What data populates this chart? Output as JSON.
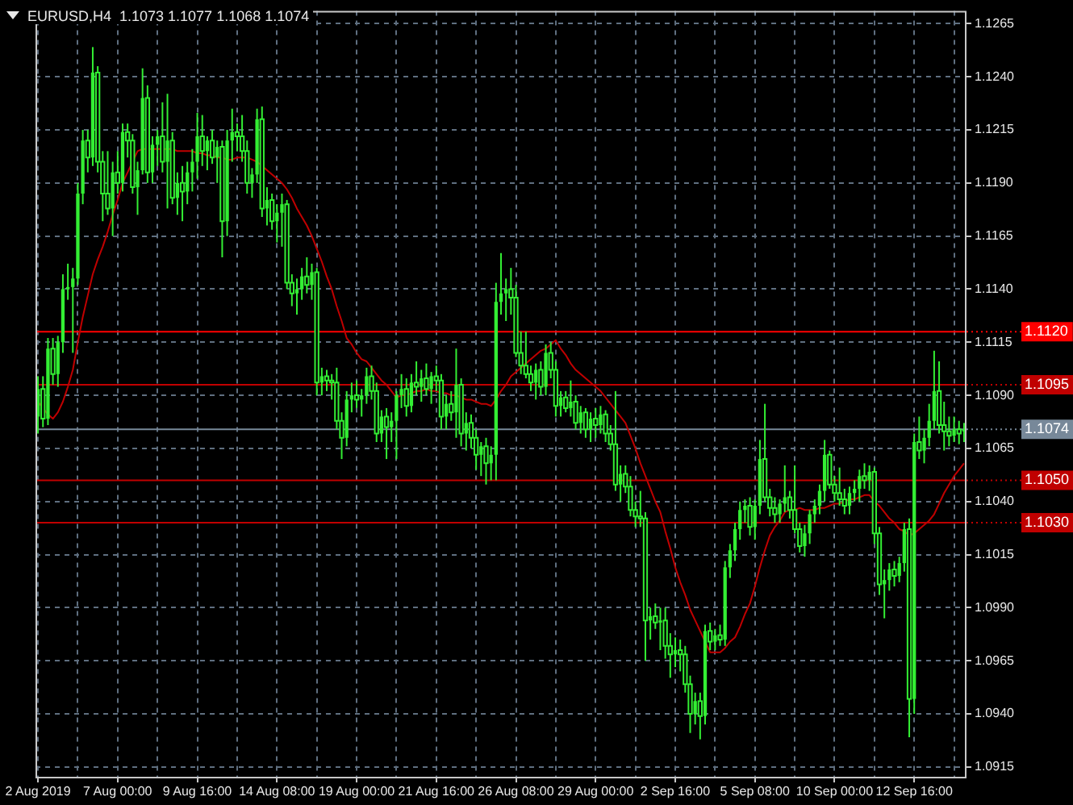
{
  "chart_data": {
    "type": "candlestick",
    "title": "EURUSD,H4  1.1073 1.1077 1.1068 1.1074",
    "color": "#33ee33",
    "categories": [
      "2 Aug 2019",
      null,
      null,
      null,
      null,
      null,
      null,
      null,
      null,
      null,
      null,
      null,
      null,
      null,
      null,
      null,
      "7 Aug 00:00",
      null,
      null,
      null,
      null,
      null,
      null,
      null,
      null,
      null,
      null,
      null,
      null,
      null,
      null,
      null,
      "9 Aug 16:00",
      null,
      null,
      null,
      null,
      null,
      null,
      null,
      null,
      null,
      null,
      null,
      null,
      null,
      null,
      null,
      "14 Aug 08:00",
      null,
      null,
      null,
      null,
      null,
      null,
      null,
      null,
      null,
      null,
      null,
      null,
      null,
      null,
      null,
      "19 Aug 00:00",
      null,
      null,
      null,
      null,
      null,
      null,
      null,
      null,
      null,
      null,
      null,
      null,
      null,
      null,
      null,
      "21 Aug 16:00",
      null,
      null,
      null,
      null,
      null,
      null,
      null,
      null,
      null,
      null,
      null,
      null,
      null,
      null,
      null,
      "26 Aug 08:00",
      null,
      null,
      null,
      null,
      null,
      null,
      null,
      null,
      null,
      null,
      null,
      null,
      null,
      null,
      null,
      "29 Aug 00:00",
      null,
      null,
      null,
      null,
      null,
      null,
      null,
      null,
      null,
      null,
      null,
      null,
      null,
      null,
      null,
      "2 Sep 16:00",
      null,
      null,
      null,
      null,
      null,
      null,
      null,
      null,
      null,
      null,
      null,
      null,
      null,
      null,
      null,
      "5 Sep 08:00",
      null,
      null,
      null,
      null,
      null,
      null,
      null,
      null,
      null,
      null,
      null,
      null,
      null,
      null,
      null,
      "10 Sep 00:00",
      null,
      null,
      null,
      null,
      null,
      null,
      null,
      null,
      null,
      null,
      null,
      null,
      null,
      null,
      null,
      "12 Sep 16:00",
      null,
      null,
      null,
      null,
      null,
      null,
      null,
      null,
      null,
      null
    ],
    "ohlc": [
      [
        1.108,
        1.1099,
        1.1072,
        1.1093
      ],
      [
        1.1093,
        1.1099,
        1.1075,
        1.1079
      ],
      [
        1.1079,
        1.1117,
        1.1076,
        1.1112
      ],
      [
        1.1112,
        1.1117,
        1.1095,
        1.11
      ],
      [
        1.11,
        1.1118,
        1.1094,
        1.1115
      ],
      [
        1.1115,
        1.1147,
        1.111,
        1.114
      ],
      [
        1.114,
        1.1152,
        1.1135,
        1.1141
      ],
      [
        1.1141,
        1.115,
        1.111,
        1.1145
      ],
      [
        1.1145,
        1.119,
        1.1142,
        1.1185
      ],
      [
        1.1185,
        1.1215,
        1.118,
        1.121
      ],
      [
        1.121,
        1.1215,
        1.1195,
        1.1202
      ],
      [
        1.1202,
        1.1254,
        1.1198,
        1.1242
      ],
      [
        1.1242,
        1.1245,
        1.1195,
        1.12
      ],
      [
        1.12,
        1.1205,
        1.1172,
        1.1185
      ],
      [
        1.1185,
        1.1205,
        1.1175,
        1.1178
      ],
      [
        1.1178,
        1.12,
        1.1165,
        1.1195
      ],
      [
        1.1195,
        1.1205,
        1.1185,
        1.119
      ],
      [
        1.119,
        1.1218,
        1.1186,
        1.1214
      ],
      [
        1.1214,
        1.1218,
        1.1202,
        1.121
      ],
      [
        1.121,
        1.1213,
        1.1185,
        1.1188
      ],
      [
        1.1188,
        1.12,
        1.1175,
        1.1196
      ],
      [
        1.1196,
        1.1244,
        1.1194,
        1.123
      ],
      [
        1.123,
        1.1236,
        1.119,
        1.1195
      ],
      [
        1.1195,
        1.1212,
        1.119,
        1.1208
      ],
      [
        1.1208,
        1.1215,
        1.1198,
        1.1212
      ],
      [
        1.1212,
        1.1228,
        1.1195,
        1.12
      ],
      [
        1.12,
        1.1232,
        1.1178,
        1.121
      ],
      [
        1.121,
        1.1214,
        1.118,
        1.1183
      ],
      [
        1.1183,
        1.1195,
        1.1175,
        1.119
      ],
      [
        1.119,
        1.1198,
        1.1172,
        1.1186
      ],
      [
        1.1186,
        1.12,
        1.118,
        1.1195
      ],
      [
        1.1195,
        1.1206,
        1.1186,
        1.12
      ],
      [
        1.12,
        1.1223,
        1.1192,
        1.1212
      ],
      [
        1.1212,
        1.1222,
        1.1198,
        1.1205
      ],
      [
        1.1205,
        1.1212,
        1.1196,
        1.121
      ],
      [
        1.121,
        1.1215,
        1.1199,
        1.1202
      ],
      [
        1.1202,
        1.121,
        1.119,
        1.1207
      ],
      [
        1.1207,
        1.121,
        1.1155,
        1.1172
      ],
      [
        1.1172,
        1.1215,
        1.1165,
        1.121
      ],
      [
        1.121,
        1.1225,
        1.12,
        1.1214
      ],
      [
        1.1214,
        1.1218,
        1.1205,
        1.1212
      ],
      [
        1.1212,
        1.1222,
        1.12,
        1.1205
      ],
      [
        1.1205,
        1.121,
        1.1185,
        1.119
      ],
      [
        1.119,
        1.1197,
        1.1183,
        1.1194
      ],
      [
        1.1194,
        1.1225,
        1.119,
        1.122
      ],
      [
        1.122,
        1.1226,
        1.1174,
        1.1178
      ],
      [
        1.1178,
        1.1188,
        1.117,
        1.1182
      ],
      [
        1.1182,
        1.1185,
        1.1168,
        1.1172
      ],
      [
        1.1172,
        1.118,
        1.1162,
        1.1176
      ],
      [
        1.1176,
        1.1185,
        1.116,
        1.118
      ],
      [
        1.118,
        1.1182,
        1.114,
        1.1143
      ],
      [
        1.1143,
        1.1147,
        1.1132,
        1.1138
      ],
      [
        1.1138,
        1.1145,
        1.1128,
        1.114
      ],
      [
        1.114,
        1.115,
        1.1135,
        1.1146
      ],
      [
        1.1146,
        1.1155,
        1.1138,
        1.1142
      ],
      [
        1.1142,
        1.1152,
        1.1135,
        1.1148
      ],
      [
        1.1148,
        1.115,
        1.109,
        1.1096
      ],
      [
        1.1096,
        1.1103,
        1.109,
        1.1099
      ],
      [
        1.1099,
        1.1102,
        1.1092,
        1.1097
      ],
      [
        1.1097,
        1.11,
        1.1088,
        1.1096
      ],
      [
        1.1096,
        1.1103,
        1.1074,
        1.1078
      ],
      [
        1.1078,
        1.1082,
        1.106,
        1.107
      ],
      [
        1.107,
        1.1092,
        1.1066,
        1.1088
      ],
      [
        1.1088,
        1.1096,
        1.1082,
        1.109
      ],
      [
        1.109,
        1.1097,
        1.1084,
        1.1088
      ],
      [
        1.1088,
        1.1093,
        1.108,
        1.109
      ],
      [
        1.109,
        1.1103,
        1.1086,
        1.1099
      ],
      [
        1.1099,
        1.1104,
        1.1088,
        1.1092
      ],
      [
        1.1092,
        1.1096,
        1.1068,
        1.1072
      ],
      [
        1.1072,
        1.1083,
        1.1068,
        1.108
      ],
      [
        1.108,
        1.1084,
        1.106,
        1.1075
      ],
      [
        1.1075,
        1.1082,
        1.1068,
        1.1078
      ],
      [
        1.1078,
        1.1092,
        1.106,
        1.109
      ],
      [
        1.109,
        1.11,
        1.1084,
        1.1093
      ],
      [
        1.1093,
        1.1098,
        1.108,
        1.1085
      ],
      [
        1.1085,
        1.11,
        1.1082,
        1.1096
      ],
      [
        1.1096,
        1.1106,
        1.109,
        1.1094
      ],
      [
        1.1094,
        1.1102,
        1.1087,
        1.1098
      ],
      [
        1.1098,
        1.1105,
        1.109,
        1.1093
      ],
      [
        1.1093,
        1.1101,
        1.1086,
        1.1099
      ],
      [
        1.1099,
        1.1104,
        1.1092,
        1.1097
      ],
      [
        1.1097,
        1.11,
        1.1074,
        1.108
      ],
      [
        1.108,
        1.109,
        1.1074,
        1.1086
      ],
      [
        1.1086,
        1.1092,
        1.1078,
        1.1082
      ],
      [
        1.1082,
        1.1112,
        1.107,
        1.1095
      ],
      [
        1.1095,
        1.1098,
        1.1066,
        1.1072
      ],
      [
        1.1072,
        1.1082,
        1.1064,
        1.1077
      ],
      [
        1.1077,
        1.1081,
        1.1065,
        1.107
      ],
      [
        1.107,
        1.1074,
        1.1055,
        1.1062
      ],
      [
        1.1062,
        1.1068,
        1.1052,
        1.1066
      ],
      [
        1.1066,
        1.107,
        1.1048,
        1.1058
      ],
      [
        1.1058,
        1.1066,
        1.105,
        1.1062
      ],
      [
        1.1062,
        1.1143,
        1.105,
        1.1134
      ],
      [
        1.1134,
        1.1157,
        1.1128,
        1.1138
      ],
      [
        1.1138,
        1.1145,
        1.1125,
        1.114
      ],
      [
        1.114,
        1.115,
        1.1128,
        1.1136
      ],
      [
        1.1136,
        1.1142,
        1.1108,
        1.111
      ],
      [
        1.111,
        1.112,
        1.11,
        1.1104
      ],
      [
        1.1104,
        1.112,
        1.1098,
        1.11
      ],
      [
        1.11,
        1.1104,
        1.1092,
        1.1096
      ],
      [
        1.1096,
        1.1105,
        1.1088,
        1.1102
      ],
      [
        1.1102,
        1.1106,
        1.109,
        1.1094
      ],
      [
        1.1094,
        1.1114,
        1.109,
        1.111
      ],
      [
        1.111,
        1.1115,
        1.1098,
        1.1102
      ],
      [
        1.1102,
        1.1106,
        1.108,
        1.1085
      ],
      [
        1.1085,
        1.1092,
        1.108,
        1.1089
      ],
      [
        1.1089,
        1.1092,
        1.1082,
        1.1084
      ],
      [
        1.1084,
        1.1097,
        1.108,
        1.1087
      ],
      [
        1.1087,
        1.109,
        1.1074,
        1.1077
      ],
      [
        1.1077,
        1.1085,
        1.1072,
        1.1082
      ],
      [
        1.1082,
        1.1084,
        1.107,
        1.1074
      ],
      [
        1.1074,
        1.1082,
        1.1068,
        1.1079
      ],
      [
        1.1079,
        1.1084,
        1.107,
        1.1076
      ],
      [
        1.1076,
        1.1085,
        1.1072,
        1.1081
      ],
      [
        1.1081,
        1.1083,
        1.1068,
        1.1072
      ],
      [
        1.1072,
        1.1076,
        1.1064,
        1.1067
      ],
      [
        1.1067,
        1.1092,
        1.1045,
        1.1048
      ],
      [
        1.1048,
        1.1057,
        1.104,
        1.1053
      ],
      [
        1.1053,
        1.1057,
        1.1044,
        1.1047
      ],
      [
        1.1047,
        1.1052,
        1.1033,
        1.1036
      ],
      [
        1.1036,
        1.104,
        1.1028,
        1.1033
      ],
      [
        1.1033,
        1.1045,
        1.1028,
        1.1032
      ],
      [
        1.1032,
        1.1035,
        1.0965,
        1.0984
      ],
      [
        1.0984,
        1.099,
        1.0975,
        1.0986
      ],
      [
        1.0986,
        1.0992,
        1.098,
        1.0983
      ],
      [
        1.0983,
        1.099,
        1.097,
        1.0984
      ],
      [
        1.0984,
        1.099,
        1.0966,
        1.0972
      ],
      [
        1.0972,
        1.0978,
        1.0957,
        1.0968
      ],
      [
        1.0968,
        1.0976,
        1.0962,
        1.097
      ],
      [
        1.097,
        1.0975,
        1.096,
        1.0968
      ],
      [
        1.0968,
        1.0972,
        1.095,
        1.0954
      ],
      [
        1.0954,
        1.0958,
        1.0931,
        1.094
      ],
      [
        1.094,
        1.095,
        1.0935,
        1.0946
      ],
      [
        1.0946,
        1.095,
        1.0928,
        1.0939
      ],
      [
        1.0939,
        1.0982,
        1.0935,
        1.0979
      ],
      [
        1.0979,
        1.0983,
        1.097,
        1.0974
      ],
      [
        1.0974,
        1.098,
        1.097,
        1.0977
      ],
      [
        1.0977,
        1.0982,
        1.0972,
        1.0975
      ],
      [
        1.0975,
        1.1012,
        1.0972,
        1.1009
      ],
      [
        1.1009,
        1.102,
        1.1004,
        1.1017
      ],
      [
        1.1017,
        1.103,
        1.1012,
        1.1027
      ],
      [
        1.1027,
        1.104,
        1.1022,
        1.1036
      ],
      [
        1.1036,
        1.1041,
        1.103,
        1.1038
      ],
      [
        1.1038,
        1.1042,
        1.1024,
        1.1028
      ],
      [
        1.1028,
        1.1041,
        1.1022,
        1.1038
      ],
      [
        1.1038,
        1.1069,
        1.1034,
        1.106
      ],
      [
        1.106,
        1.1086,
        1.104,
        1.1042
      ],
      [
        1.1042,
        1.1046,
        1.1033,
        1.1037
      ],
      [
        1.1037,
        1.1042,
        1.103,
        1.1034
      ],
      [
        1.1034,
        1.1041,
        1.103,
        1.1039
      ],
      [
        1.1039,
        1.1057,
        1.1035,
        1.1042
      ],
      [
        1.1042,
        1.1045,
        1.1032,
        1.1036
      ],
      [
        1.1036,
        1.1057,
        1.1025,
        1.1027
      ],
      [
        1.1027,
        1.103,
        1.1016,
        1.1019
      ],
      [
        1.1019,
        1.1029,
        1.1014,
        1.1025
      ],
      [
        1.1025,
        1.1036,
        1.102,
        1.1034
      ],
      [
        1.1034,
        1.1041,
        1.103,
        1.1038
      ],
      [
        1.1038,
        1.1048,
        1.1034,
        1.1045
      ],
      [
        1.1045,
        1.1069,
        1.104,
        1.1062
      ],
      [
        1.1062,
        1.1064,
        1.1046,
        1.1048
      ],
      [
        1.1048,
        1.1052,
        1.104,
        1.1044
      ],
      [
        1.1044,
        1.1056,
        1.1038,
        1.1041
      ],
      [
        1.1041,
        1.1046,
        1.1034,
        1.1038
      ],
      [
        1.1038,
        1.1047,
        1.1034,
        1.1044
      ],
      [
        1.1044,
        1.105,
        1.104,
        1.1046
      ],
      [
        1.1046,
        1.1055,
        1.104,
        1.1052
      ],
      [
        1.1052,
        1.1058,
        1.1046,
        1.105
      ],
      [
        1.105,
        1.1057,
        1.1045,
        1.1054
      ],
      [
        1.1054,
        1.1056,
        1.102,
        1.1025
      ],
      [
        1.1025,
        1.1028,
        1.0996,
        1.1001
      ],
      [
        1.1001,
        1.1008,
        1.0985,
        1.1003
      ],
      [
        1.1003,
        1.1011,
        1.0998,
        1.1008
      ],
      [
        1.1008,
        1.1012,
        1.1,
        1.1005
      ],
      [
        1.1005,
        1.1014,
        1.1002,
        1.1011
      ],
      [
        1.1011,
        1.103,
        1.1007,
        1.1027
      ],
      [
        1.1027,
        1.1032,
        1.0929,
        1.0947
      ],
      [
        1.0947,
        1.1072,
        1.094,
        1.1068
      ],
      [
        1.1068,
        1.108,
        1.106,
        1.1064
      ],
      [
        1.1064,
        1.1074,
        1.1058,
        1.107
      ],
      [
        1.107,
        1.1086,
        1.1066,
        1.1078
      ],
      [
        1.1078,
        1.1111,
        1.1074,
        1.1092
      ],
      [
        1.1092,
        1.1106,
        1.1072,
        1.1076
      ],
      [
        1.1076,
        1.1087,
        1.1064,
        1.1073
      ],
      [
        1.1073,
        1.108,
        1.1066,
        1.1071
      ],
      [
        1.1071,
        1.108,
        1.1068,
        1.1074
      ],
      [
        1.1074,
        1.1078,
        1.1067,
        1.1072
      ],
      [
        1.1073,
        1.1077,
        1.1068,
        1.1074
      ]
    ],
    "series": [
      {
        "type": "line",
        "color": "#c00000",
        "values": [
          1.1087,
          1.1084,
          1.1081,
          1.1079,
          1.1082,
          1.1087,
          1.1094,
          1.1102,
          1.1115,
          1.1127,
          1.1137,
          1.1147,
          1.1154,
          1.116,
          1.1167,
          1.1175,
          1.1182,
          1.119,
          1.1195,
          1.12,
          1.1205,
          1.1206,
          1.1206,
          1.1206,
          1.1206,
          1.1206,
          1.1206,
          1.1206,
          1.1205,
          1.1205,
          1.1205,
          1.1205,
          1.1204,
          1.1204,
          1.1203,
          1.1203,
          1.1202,
          1.1202,
          1.1201,
          1.1201,
          1.1202,
          1.1202,
          1.1202,
          1.1201,
          1.12,
          1.1198,
          1.1196,
          1.1194,
          1.1192,
          1.119,
          1.1187,
          1.1183,
          1.1178,
          1.1174,
          1.117,
          1.1165,
          1.1159,
          1.1153,
          1.1146,
          1.114,
          1.1132,
          1.1125,
          1.1117,
          1.1114,
          1.111,
          1.1107,
          1.1106,
          1.1103,
          1.11,
          1.1097,
          1.1095,
          1.1092,
          1.1089,
          1.109,
          1.109,
          1.1091,
          1.1092,
          1.1092,
          1.1093,
          1.1092,
          1.1092,
          1.1091,
          1.1091,
          1.109,
          1.109,
          1.1089,
          1.1088,
          1.1088,
          1.1087,
          1.1086,
          1.1086,
          1.1085,
          1.1088,
          1.1092,
          1.1095,
          1.1099,
          1.1101,
          1.1103,
          1.1105,
          1.1107,
          1.1109,
          1.1111,
          1.1112,
          1.1114,
          1.1116,
          1.1112,
          1.1109,
          1.1105,
          1.1102,
          1.11,
          1.1098,
          1.1096,
          1.1094,
          1.1092,
          1.1089,
          1.1086,
          1.1083,
          1.108,
          1.1077,
          1.1071,
          1.1065,
          1.1058,
          1.1052,
          1.1046,
          1.104,
          1.1035,
          1.1026,
          1.1018,
          1.1009,
          1.1002,
          1.0996,
          1.0989,
          1.0984,
          1.0979,
          1.0974,
          1.0969,
          1.0969,
          1.0969,
          1.0971,
          1.0974,
          1.0976,
          1.0981,
          1.0987,
          1.0992,
          1.1,
          1.1009,
          1.1017,
          1.1024,
          1.1028,
          1.1031,
          1.1035,
          1.1036,
          1.1036,
          1.1037,
          1.1036,
          1.1036,
          1.1036,
          1.1037,
          1.1037,
          1.1038,
          1.1039,
          1.1039,
          1.104,
          1.1041,
          1.1041,
          1.1042,
          1.1043,
          1.1043,
          1.104,
          1.1038,
          1.1035,
          1.1032,
          1.103,
          1.1027,
          1.1026,
          1.1024,
          1.1025,
          1.1027,
          1.1029,
          1.1031,
          1.1034,
          1.1039,
          1.1044,
          1.1048,
          1.1052,
          1.1055,
          1.1058
        ]
      }
    ],
    "ylim": [
      1.091,
      1.1271
    ],
    "yticks": [
      {
        "value": 1.0915,
        "label": "1.0915"
      },
      {
        "value": 1.094,
        "label": "1.0940"
      },
      {
        "value": 1.0965,
        "label": "1.0965"
      },
      {
        "value": 1.099,
        "label": "1.0990"
      },
      {
        "value": 1.1015,
        "label": "1.1015"
      },
      {
        "value": 1.104,
        "label": "1.1040"
      },
      {
        "value": 1.1065,
        "label": "1.1065"
      },
      {
        "value": 1.109,
        "label": "1.1090"
      },
      {
        "value": 1.1115,
        "label": "1.1115"
      },
      {
        "value": 1.114,
        "label": "1.1140"
      },
      {
        "value": 1.1165,
        "label": "1.1165"
      },
      {
        "value": 1.119,
        "label": "1.1190"
      },
      {
        "value": 1.1215,
        "label": "1.1215"
      },
      {
        "value": 1.124,
        "label": "1.1240"
      },
      {
        "value": 1.1265,
        "label": "1.1265"
      }
    ],
    "grid": true,
    "ref_lines": [
      {
        "axis": "y",
        "value": 1.112,
        "label": "1.1120",
        "color": "#ff0000"
      },
      {
        "axis": "y",
        "value": 1.1095,
        "label": "1.1095",
        "color": "#c00000"
      },
      {
        "axis": "y",
        "value": 1.1074,
        "label": "1.1074",
        "color": "#778899"
      },
      {
        "axis": "y",
        "value": 1.105,
        "label": "1.1050",
        "color": "#c00000"
      },
      {
        "axis": "y",
        "value": 1.103,
        "label": "1.1030",
        "color": "#c00000"
      }
    ]
  }
}
